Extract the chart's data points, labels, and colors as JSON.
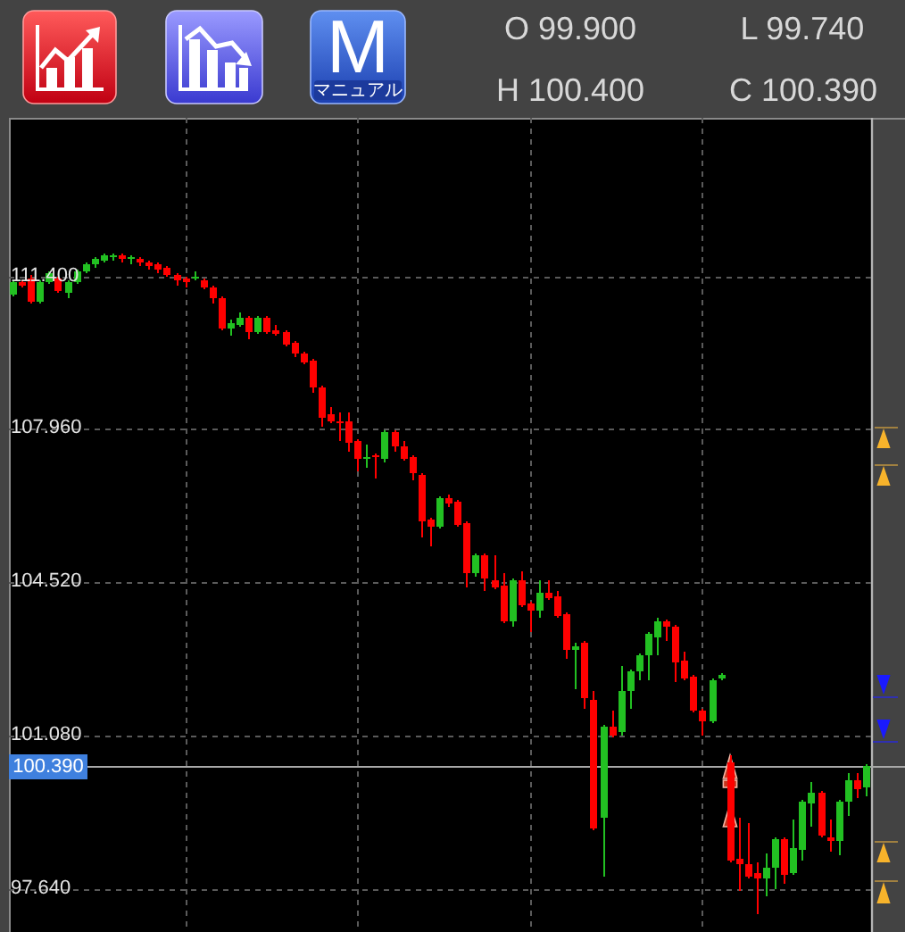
{
  "chart_data": {
    "type": "candlestick",
    "annotations": [
      "O 99.900",
      "L 99.740",
      "H 100.400",
      "C 100.390",
      "M",
      "マニュアル"
    ],
    "categories": [
      null,
      null,
      null,
      null,
      null,
      null,
      null,
      null,
      null,
      null,
      null,
      null,
      null,
      null,
      null,
      null,
      null,
      null,
      null,
      null,
      null,
      null,
      null,
      null,
      null,
      null,
      null,
      null,
      null,
      null,
      null,
      null,
      null,
      null,
      null,
      null,
      null,
      null,
      null,
      null,
      null,
      null,
      null,
      null,
      null,
      null,
      null,
      null,
      null,
      null,
      null,
      null,
      null,
      null,
      null,
      null,
      null,
      null,
      null,
      null,
      null,
      null,
      null,
      null,
      null,
      null,
      null,
      null,
      null,
      null,
      null,
      null,
      null,
      null,
      null,
      null,
      null,
      null,
      null,
      null,
      null,
      null,
      null,
      null,
      null,
      null,
      null,
      null,
      null,
      null,
      null,
      null,
      null,
      null,
      null
    ],
    "ohlc": [
      [
        110.97,
        111.3,
        110.94,
        111.27
      ],
      [
        111.25,
        111.27,
        111.16,
        111.18
      ],
      [
        111.35,
        111.4,
        110.8,
        110.82
      ],
      [
        110.82,
        111.29,
        110.78,
        111.27
      ],
      [
        111.25,
        111.48,
        111.22,
        111.45
      ],
      [
        111.35,
        111.38,
        111.02,
        111.05
      ],
      [
        111.02,
        111.29,
        110.93,
        111.27
      ],
      [
        111.27,
        111.53,
        111.25,
        111.51
      ],
      [
        111.5,
        111.69,
        111.48,
        111.67
      ],
      [
        111.65,
        111.82,
        111.62,
        111.77
      ],
      [
        111.74,
        111.88,
        111.72,
        111.86
      ],
      [
        111.84,
        111.9,
        111.78,
        111.86
      ],
      [
        111.86,
        111.9,
        111.72,
        111.77
      ],
      [
        111.81,
        111.84,
        111.7,
        111.83
      ],
      [
        111.79,
        111.81,
        111.64,
        111.71
      ],
      [
        111.71,
        111.73,
        111.58,
        111.63
      ],
      [
        111.65,
        111.67,
        111.49,
        111.55
      ],
      [
        111.57,
        111.59,
        111.4,
        111.42
      ],
      [
        111.43,
        111.45,
        111.2,
        111.31
      ],
      [
        111.34,
        111.37,
        111.17,
        111.26
      ],
      [
        111.37,
        111.47,
        111.31,
        111.39
      ],
      [
        111.31,
        111.33,
        111.13,
        111.15
      ],
      [
        111.15,
        111.17,
        110.81,
        110.91
      ],
      [
        110.91,
        110.93,
        110.2,
        110.22
      ],
      [
        110.22,
        110.38,
        110.08,
        110.35
      ],
      [
        110.31,
        110.55,
        110.29,
        110.47
      ],
      [
        110.47,
        110.49,
        110.01,
        110.14
      ],
      [
        110.14,
        110.49,
        110.12,
        110.47
      ],
      [
        110.47,
        110.49,
        110.12,
        110.14
      ],
      [
        110.18,
        110.27,
        110.09,
        110.11
      ],
      [
        110.15,
        110.17,
        109.85,
        109.87
      ],
      [
        109.9,
        109.92,
        109.6,
        109.67
      ],
      [
        109.67,
        109.69,
        109.45,
        109.47
      ],
      [
        109.49,
        109.51,
        108.8,
        108.88
      ],
      [
        108.88,
        108.9,
        108.05,
        108.2
      ],
      [
        108.28,
        108.45,
        108.12,
        108.14
      ],
      [
        108.13,
        108.3,
        107.7,
        108.08
      ],
      [
        108.13,
        108.3,
        107.45,
        107.66
      ],
      [
        107.68,
        107.72,
        107.01,
        107.3
      ],
      [
        107.32,
        107.6,
        107.1,
        107.34
      ],
      [
        107.35,
        107.37,
        106.88,
        107.31
      ],
      [
        107.29,
        107.9,
        107.22,
        107.88
      ],
      [
        107.89,
        107.91,
        107.45,
        107.56
      ],
      [
        107.57,
        107.68,
        107.28,
        107.3
      ],
      [
        107.32,
        107.34,
        106.84,
        106.96
      ],
      [
        106.92,
        106.94,
        105.56,
        105.87
      ],
      [
        105.91,
        105.93,
        105.36,
        105.78
      ],
      [
        105.76,
        106.43,
        105.74,
        106.41
      ],
      [
        106.42,
        106.45,
        106.22,
        106.3
      ],
      [
        106.31,
        106.33,
        105.8,
        105.82
      ],
      [
        105.83,
        105.85,
        104.43,
        104.72
      ],
      [
        104.72,
        105.15,
        104.65,
        105.12
      ],
      [
        105.13,
        105.15,
        104.36,
        104.61
      ],
      [
        104.55,
        105.09,
        104.38,
        104.41
      ],
      [
        104.45,
        104.69,
        103.62,
        103.65
      ],
      [
        103.63,
        104.57,
        103.55,
        104.55
      ],
      [
        104.56,
        104.75,
        103.97,
        104.0
      ],
      [
        104.04,
        104.07,
        103.43,
        103.88
      ],
      [
        103.87,
        104.55,
        103.75,
        104.29
      ],
      [
        104.29,
        104.55,
        104.14,
        104.16
      ],
      [
        104.19,
        104.3,
        103.74,
        103.76
      ],
      [
        103.81,
        103.83,
        102.82,
        103.01
      ],
      [
        103.0,
        103.12,
        102.15,
        103.08
      ],
      [
        103.16,
        103.18,
        101.71,
        101.93
      ],
      [
        101.89,
        102.06,
        98.97,
        98.99
      ],
      [
        99.24,
        101.29,
        97.91,
        101.27
      ],
      [
        101.27,
        101.6,
        101.06,
        101.08
      ],
      [
        101.14,
        102.62,
        101.1,
        102.09
      ],
      [
        102.09,
        102.55,
        101.68,
        102.53
      ],
      [
        102.53,
        102.91,
        102.35,
        102.89
      ],
      [
        102.89,
        103.37,
        102.35,
        103.35
      ],
      [
        103.26,
        103.68,
        102.89,
        103.65
      ],
      [
        103.65,
        103.67,
        103.2,
        103.53
      ],
      [
        103.53,
        103.55,
        102.31,
        102.72
      ],
      [
        102.76,
        102.93,
        102.33,
        102.35
      ],
      [
        102.38,
        102.4,
        101.6,
        101.63
      ],
      [
        101.64,
        101.66,
        101.1,
        101.38
      ],
      [
        101.41,
        102.35,
        101.39,
        102.33
      ],
      [
        102.35,
        102.45,
        102.33,
        102.43
      ],
      [
        100.48,
        100.62,
        98.25,
        98.27
      ],
      [
        98.31,
        99.21,
        97.61,
        98.18
      ],
      [
        98.18,
        99.08,
        97.89,
        97.91
      ],
      [
        97.97,
        98.21,
        97.07,
        97.87
      ],
      [
        97.87,
        98.4,
        97.47,
        98.1
      ],
      [
        98.1,
        98.77,
        97.65,
        98.75
      ],
      [
        98.75,
        98.77,
        97.75,
        97.94
      ],
      [
        97.97,
        99.15,
        97.95,
        98.53
      ],
      [
        98.5,
        99.62,
        98.3,
        99.6
      ],
      [
        99.56,
        100.02,
        99.05,
        99.79
      ],
      [
        99.78,
        99.8,
        98.79,
        98.81
      ],
      [
        98.78,
        99.17,
        98.5,
        98.72
      ],
      [
        98.72,
        99.61,
        98.4,
        99.59
      ],
      [
        99.59,
        100.19,
        99.3,
        100.06
      ],
      [
        100.06,
        100.19,
        99.68,
        99.87
      ],
      [
        99.9,
        100.4,
        99.74,
        100.39
      ]
    ],
    "colors": [
      "#22c022",
      "#ff0000",
      "#ff0000",
      "#22c022",
      "#22c022",
      "#ff0000",
      "#22c022",
      "#22c022",
      "#22c022",
      "#22c022",
      "#22c022",
      "#22c022",
      "#ff0000",
      "#22c022",
      "#ff0000",
      "#ff0000",
      "#ff0000",
      "#ff0000",
      "#ff0000",
      "#ff0000",
      "#22c022",
      "#ff0000",
      "#ff0000",
      "#ff0000",
      "#22c022",
      "#22c022",
      "#ff0000",
      "#22c022",
      "#ff0000",
      "#ff0000",
      "#ff0000",
      "#ff0000",
      "#ff0000",
      "#ff0000",
      "#ff0000",
      "#ff0000",
      "#ff0000",
      "#ff0000",
      "#ff0000",
      "#22c022",
      "#ff0000",
      "#22c022",
      "#ff0000",
      "#ff0000",
      "#ff0000",
      "#ff0000",
      "#ff0000",
      "#22c022",
      "#ff0000",
      "#ff0000",
      "#ff0000",
      "#22c022",
      "#ff0000",
      "#ff0000",
      "#ff0000",
      "#22c022",
      "#ff0000",
      "#ff0000",
      "#22c022",
      "#ff0000",
      "#ff0000",
      "#ff0000",
      "#22c022",
      "#ff0000",
      "#ff0000",
      "#22c022",
      "#ff0000",
      "#22c022",
      "#22c022",
      "#22c022",
      "#22c022",
      "#22c022",
      "#ff0000",
      "#ff0000",
      "#ff0000",
      "#ff0000",
      "#ff0000",
      "#22c022",
      "#22c022",
      "#ff0000",
      "#ff0000",
      "#ff0000",
      "#ff0000",
      "#22c022",
      "#22c022",
      "#ff0000",
      "#22c022",
      "#22c022",
      "#22c022",
      "#ff0000",
      "#ff0000",
      "#22c022",
      "#22c022",
      "#ff0000",
      "#22c022"
    ],
    "ylim": [
      96.66,
      114.95
    ],
    "yticks": [
      {
        "value": 97.64,
        "label": "97.640"
      },
      {
        "value": 101.08,
        "label": "101.080"
      },
      {
        "value": 104.52,
        "label": "104.520"
      },
      {
        "value": 107.96,
        "label": "107.960"
      },
      {
        "value": 111.4,
        "label": "111.400"
      }
    ],
    "tick_labels": "y",
    "grid": true,
    "ref_lines": [
      {
        "axis": "y",
        "value": 100.39,
        "label": "100.390",
        "color": "#a8a8a8"
      }
    ]
  }
}
